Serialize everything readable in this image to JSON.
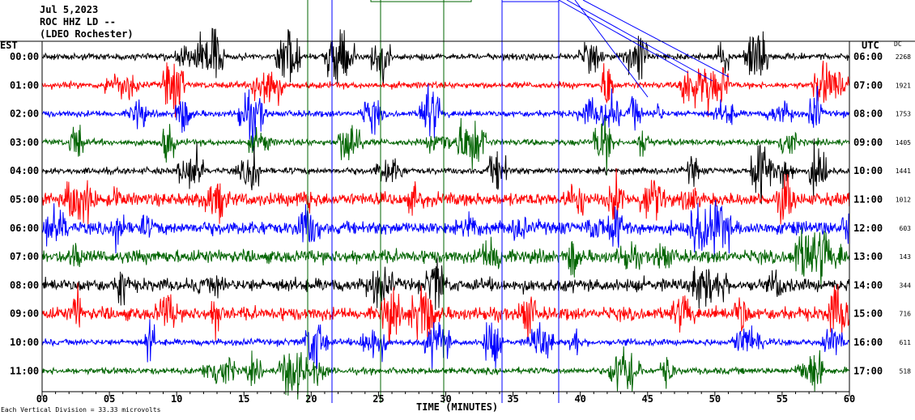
{
  "header": {
    "date": "Jul 5,2023",
    "station": "ROC HHZ LD --",
    "network": "(LDEO Rochester)"
  },
  "axes": {
    "left_tz": "EST",
    "right_tz": "UTC",
    "dc_label": "DC",
    "xlabel": "TIME (MINUTES)",
    "scale_note": "Each Vertical Division =  33.33 microvolts",
    "x_ticks": [
      "00",
      "05",
      "10",
      "15",
      "20",
      "25",
      "30",
      "35",
      "40",
      "45",
      "50",
      "55",
      "60"
    ]
  },
  "chart_data": {
    "type": "line",
    "title": "Jul 5,2023 ROC HHZ LD -- (LDEO Rochester)",
    "xlabel": "TIME (MINUTES)",
    "ylabel": "",
    "xlim": [
      0,
      60
    ],
    "x_ticks": [
      0,
      5,
      10,
      15,
      20,
      25,
      30,
      35,
      40,
      45,
      50,
      55,
      60
    ],
    "rows": [
      {
        "est": "00:00",
        "utc": "06:00",
        "dc": "2268",
        "color": "#000000"
      },
      {
        "est": "01:00",
        "utc": "07:00",
        "dc": "1921",
        "color": "#ff0000"
      },
      {
        "est": "02:00",
        "utc": "08:00",
        "dc": "1753",
        "color": "#0000ff"
      },
      {
        "est": "03:00",
        "utc": "09:00",
        "dc": "1405",
        "color": "#006400"
      },
      {
        "est": "04:00",
        "utc": "10:00",
        "dc": "1441",
        "color": "#000000"
      },
      {
        "est": "05:00",
        "utc": "11:00",
        "dc": "1012",
        "color": "#ff0000"
      },
      {
        "est": "06:00",
        "utc": "12:00",
        "dc": "603",
        "color": "#0000ff"
      },
      {
        "est": "07:00",
        "utc": "13:00",
        "dc": "143",
        "color": "#006400"
      },
      {
        "est": "08:00",
        "utc": "14:00",
        "dc": "344",
        "color": "#000000"
      },
      {
        "est": "09:00",
        "utc": "15:00",
        "dc": "716",
        "color": "#ff0000"
      },
      {
        "est": "10:00",
        "utc": "16:00",
        "dc": "611",
        "color": "#0000ff"
      },
      {
        "est": "11:00",
        "utc": "17:00",
        "dc": "518",
        "color": "#006400"
      }
    ],
    "grid": true
  }
}
